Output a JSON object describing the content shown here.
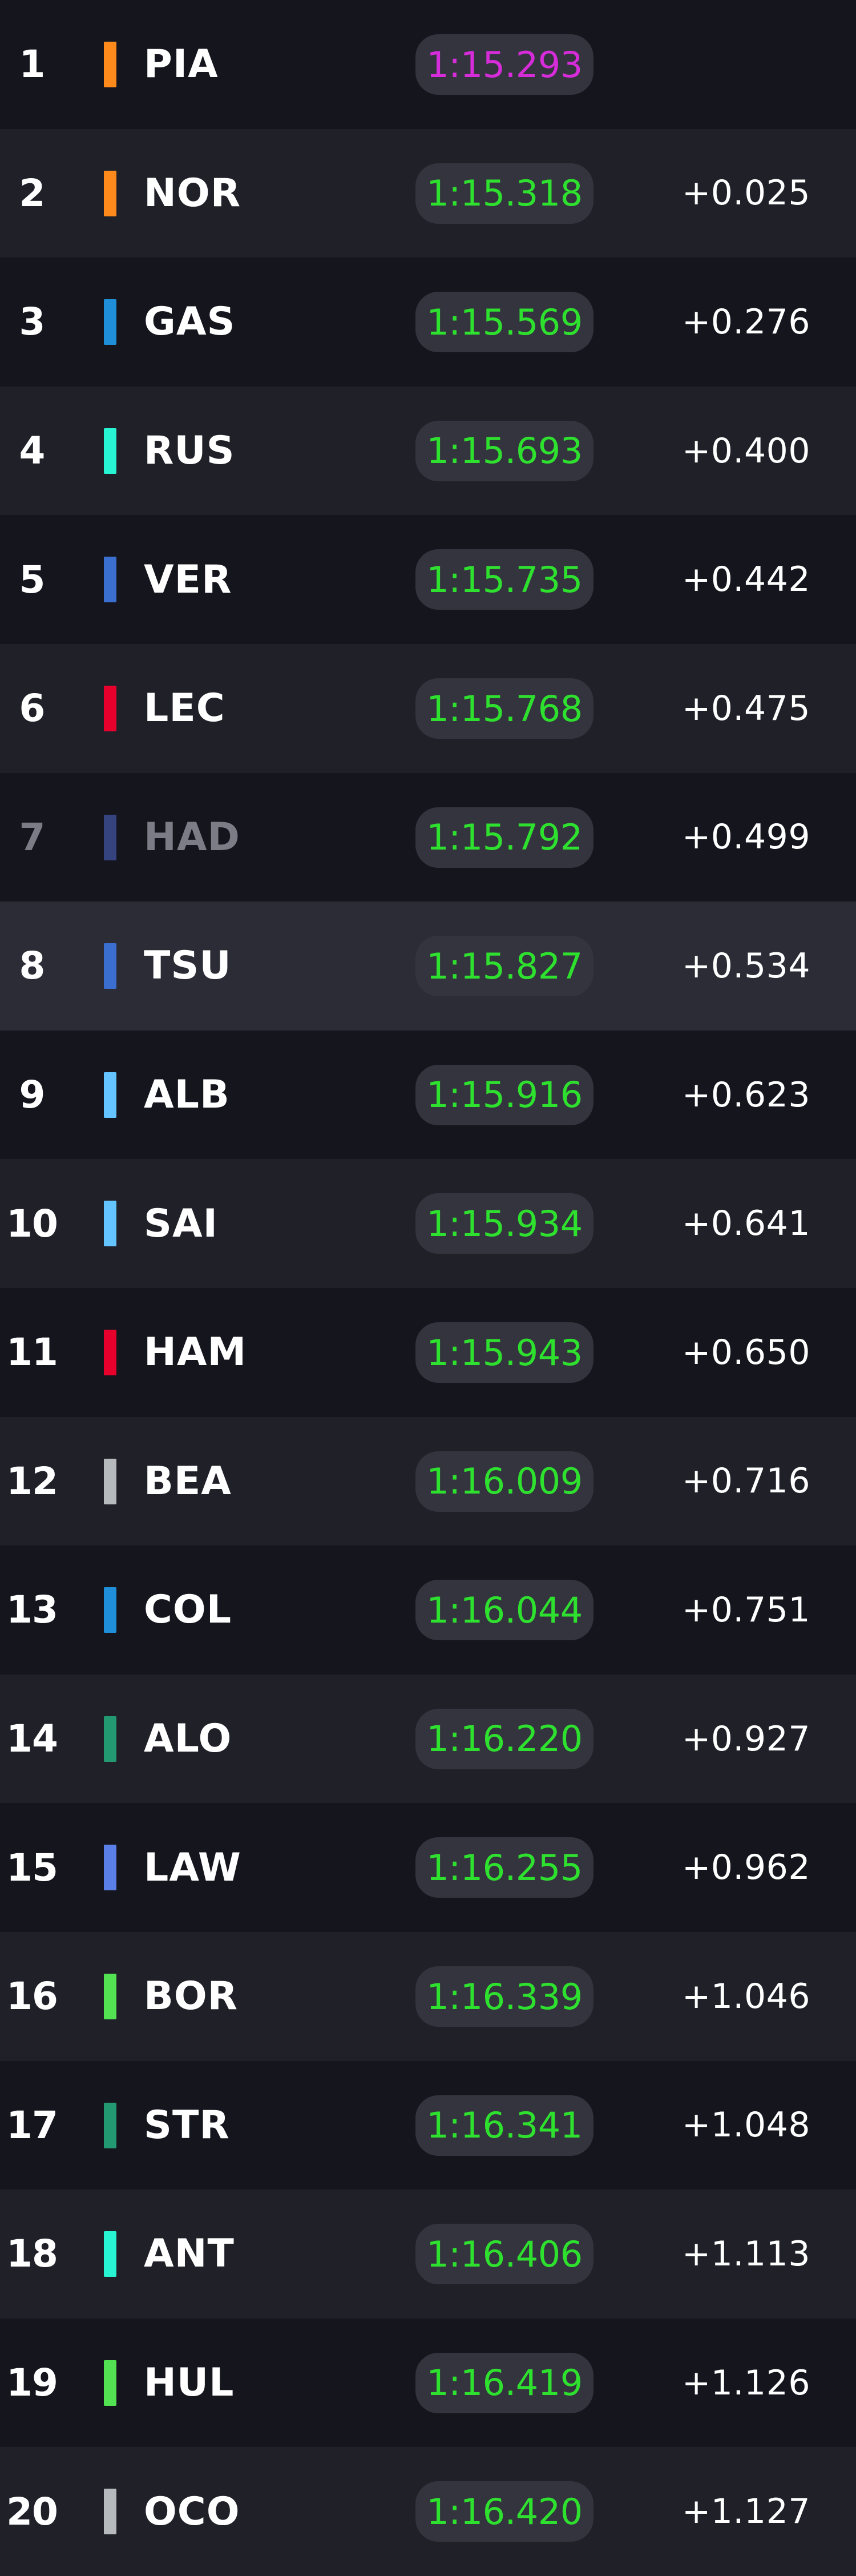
{
  "colors": {
    "fastest": "#d62cd9",
    "personal_best": "#2fe12f",
    "team_mclaren": "#ff8a1c",
    "team_alpine": "#1e8fd8",
    "team_mercedes": "#27f4d2",
    "team_redbull": "#3a6fd0",
    "team_ferrari": "#e8002d",
    "team_racingbulls": "#3b4b8f",
    "team_williams": "#64c4ff",
    "team_haas": "#b6babd",
    "team_astonmartin": "#229971",
    "team_sauber": "#52e252"
  },
  "rows": [
    {
      "pos": "1",
      "driver": "PIA",
      "team_color": "#ff8a1c",
      "time": "1:15.293",
      "time_color": "#d62cd9",
      "gap": ""
    },
    {
      "pos": "2",
      "driver": "NOR",
      "team_color": "#ff8a1c",
      "time": "1:15.318",
      "time_color": "#2fe12f",
      "gap": "+0.025"
    },
    {
      "pos": "3",
      "driver": "GAS",
      "team_color": "#1e8fd8",
      "time": "1:15.569",
      "time_color": "#2fe12f",
      "gap": "+0.276"
    },
    {
      "pos": "4",
      "driver": "RUS",
      "team_color": "#27f4d2",
      "time": "1:15.693",
      "time_color": "#2fe12f",
      "gap": "+0.400"
    },
    {
      "pos": "5",
      "driver": "VER",
      "team_color": "#3a6fd0",
      "time": "1:15.735",
      "time_color": "#2fe12f",
      "gap": "+0.442"
    },
    {
      "pos": "6",
      "driver": "LEC",
      "team_color": "#e8002d",
      "time": "1:15.768",
      "time_color": "#2fe12f",
      "gap": "+0.475"
    },
    {
      "pos": "7",
      "driver": "HAD",
      "team_color": "#3b4b8f",
      "time": "1:15.792",
      "time_color": "#2fe12f",
      "gap": "+0.499",
      "dimmed": true
    },
    {
      "pos": "8",
      "driver": "TSU",
      "team_color": "#3a6fd0",
      "time": "1:15.827",
      "time_color": "#2fe12f",
      "gap": "+0.534",
      "highlight": true
    },
    {
      "pos": "9",
      "driver": "ALB",
      "team_color": "#64c4ff",
      "time": "1:15.916",
      "time_color": "#2fe12f",
      "gap": "+0.623"
    },
    {
      "pos": "10",
      "driver": "SAI",
      "team_color": "#64c4ff",
      "time": "1:15.934",
      "time_color": "#2fe12f",
      "gap": "+0.641"
    },
    {
      "pos": "11",
      "driver": "HAM",
      "team_color": "#e8002d",
      "time": "1:15.943",
      "time_color": "#2fe12f",
      "gap": "+0.650"
    },
    {
      "pos": "12",
      "driver": "BEA",
      "team_color": "#b6babd",
      "time": "1:16.009",
      "time_color": "#2fe12f",
      "gap": "+0.716"
    },
    {
      "pos": "13",
      "driver": "COL",
      "team_color": "#1e8fd8",
      "time": "1:16.044",
      "time_color": "#2fe12f",
      "gap": "+0.751"
    },
    {
      "pos": "14",
      "driver": "ALO",
      "team_color": "#229971",
      "time": "1:16.220",
      "time_color": "#2fe12f",
      "gap": "+0.927"
    },
    {
      "pos": "15",
      "driver": "LAW",
      "team_color": "#5a7fe6",
      "time": "1:16.255",
      "time_color": "#2fe12f",
      "gap": "+0.962"
    },
    {
      "pos": "16",
      "driver": "BOR",
      "team_color": "#52e252",
      "time": "1:16.339",
      "time_color": "#2fe12f",
      "gap": "+1.046"
    },
    {
      "pos": "17",
      "driver": "STR",
      "team_color": "#229971",
      "time": "1:16.341",
      "time_color": "#2fe12f",
      "gap": "+1.048"
    },
    {
      "pos": "18",
      "driver": "ANT",
      "team_color": "#27f4d2",
      "time": "1:16.406",
      "time_color": "#2fe12f",
      "gap": "+1.113"
    },
    {
      "pos": "19",
      "driver": "HUL",
      "team_color": "#52e252",
      "time": "1:16.419",
      "time_color": "#2fe12f",
      "gap": "+1.126"
    },
    {
      "pos": "20",
      "driver": "OCO",
      "team_color": "#b6babd",
      "time": "1:16.420",
      "time_color": "#2fe12f",
      "gap": "+1.127"
    }
  ]
}
